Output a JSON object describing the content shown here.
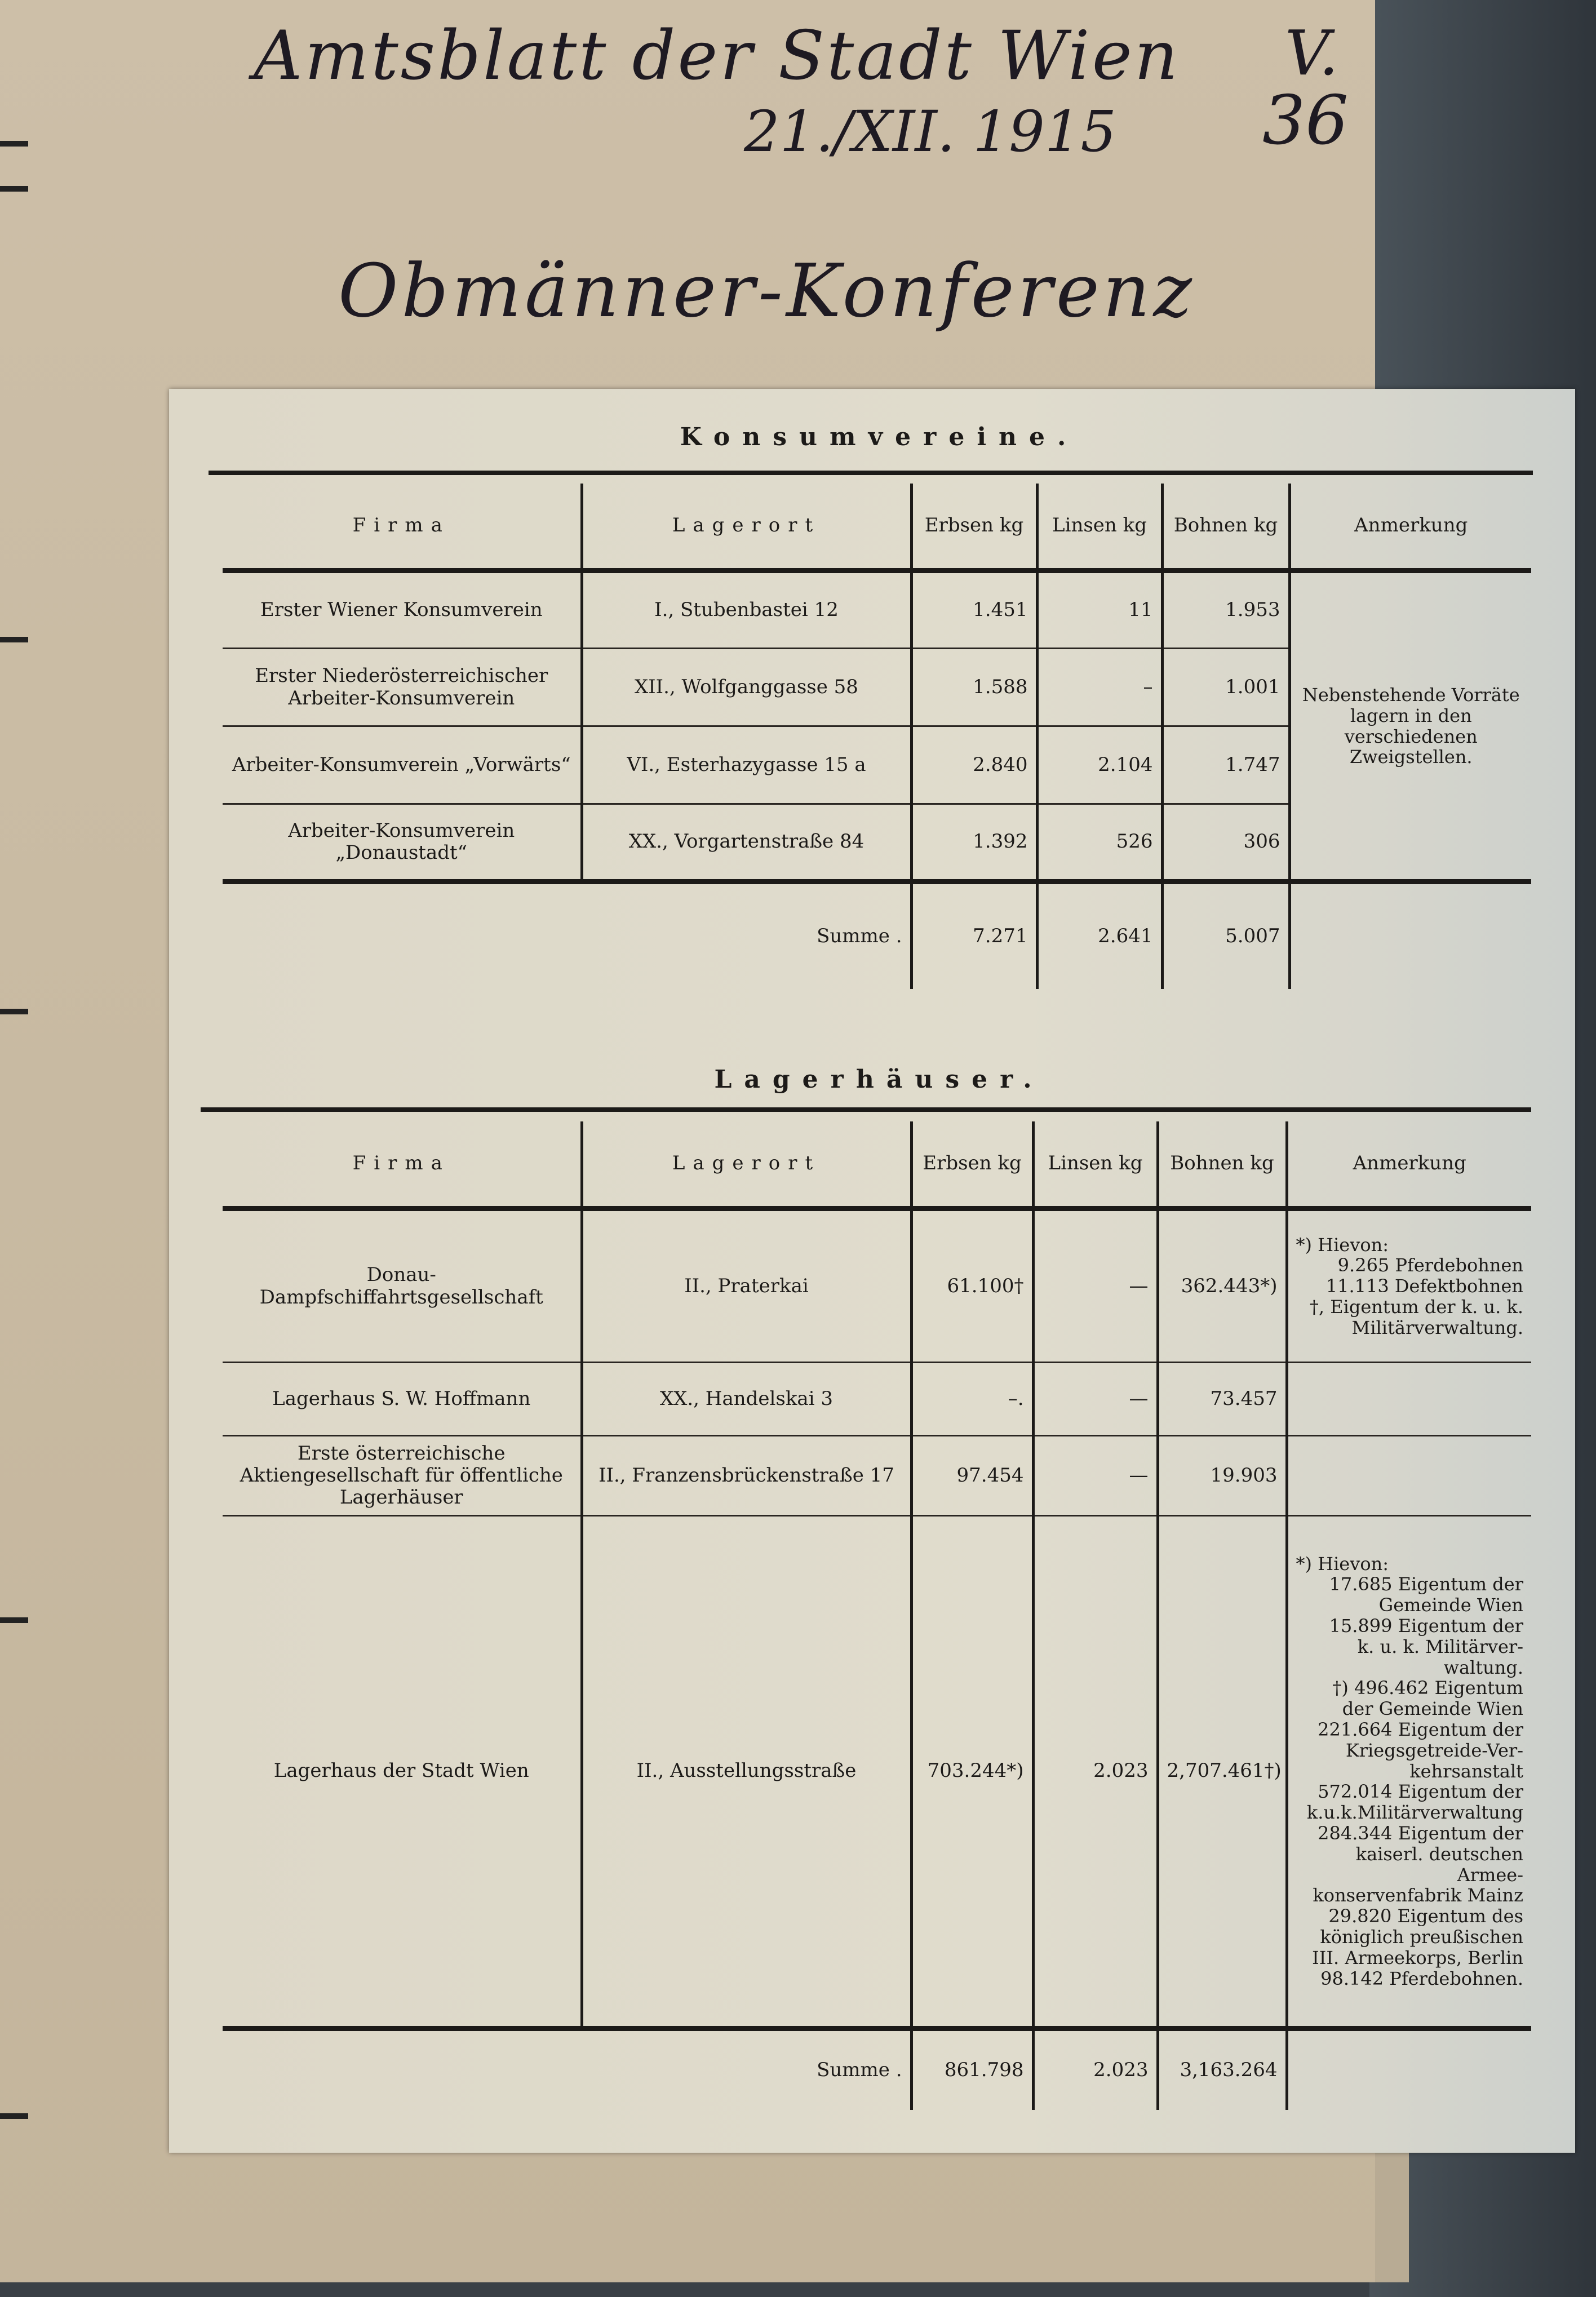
{
  "handwriting": {
    "title": "Amtsblatt der Stadt Wien",
    "date": "21./XII. 1915",
    "volume": "V.",
    "number": "36",
    "subject": "Obmänner-Konferenz"
  },
  "konsumvereine": {
    "title": "Konsumvereine.",
    "headers": {
      "firma": "Firma",
      "lagerort": "Lagerort",
      "erbsen": "Erbsen kg",
      "linsen": "Linsen kg",
      "bohnen": "Bohnen kg",
      "anmerkung": "Anmerkung"
    },
    "rows": [
      {
        "firma": "Erster Wiener Konsumverein",
        "lagerort": "I., Stubenbastei 12",
        "erbsen": "1.451",
        "linsen": "11",
        "bohnen": "1.953"
      },
      {
        "firma": "Erster Niederösterreichischer Arbeiter-Konsumverein",
        "lagerort": "XII., Wolfganggasse 58",
        "erbsen": "1.588",
        "linsen": "–",
        "bohnen": "1.001"
      },
      {
        "firma": "Arbeiter-Konsumverein „Vorwärts“",
        "lagerort": "VI., Esterhazygasse 15 a",
        "erbsen": "2.840",
        "linsen": "2.104",
        "bohnen": "1.747"
      },
      {
        "firma": "Arbeiter-Konsumverein „Donaustadt“",
        "lagerort": "XX., Vorgartenstraße 84",
        "erbsen": "1.392",
        "linsen": "526",
        "bohnen": "306"
      }
    ],
    "note": "Nebenstehende Vorräte lagern in den verschiedenen Zweigstellen.",
    "sum": {
      "label": "Summe .",
      "erbsen": "7.271",
      "linsen": "2.641",
      "bohnen": "5.007"
    }
  },
  "lagerhaeuser": {
    "title": "Lagerhäuser.",
    "headers": {
      "firma": "Firma",
      "lagerort": "Lagerort",
      "erbsen": "Erbsen kg",
      "linsen": "Linsen kg",
      "bohnen": "Bohnen kg",
      "anmerkung": "Anmerkung"
    },
    "rows": [
      {
        "firma": "Donau-Dampfschiffahrtsgesellschaft",
        "lagerort": "II., Praterkai",
        "erbsen": "61.100†",
        "linsen": "—",
        "bohnen": "362.443*)",
        "note": [
          "*) Hievon:",
          "9.265 Pferdebohnen",
          "11.113 Defektbohnen",
          "†, Eigentum der k. u. k.",
          "Militärverwaltung."
        ]
      },
      {
        "firma": "Lagerhaus S. W. Hoffmann",
        "lagerort": "XX., Handelskai 3",
        "erbsen": "–.",
        "linsen": "—",
        "bohnen": "73.457",
        "note": []
      },
      {
        "firma": "Erste österreichische Aktiengesellschaft für öffentliche Lagerhäuser",
        "lagerort": "II., Franzensbrückenstraße 17",
        "erbsen": "97.454",
        "linsen": "—",
        "bohnen": "19.903",
        "note": []
      },
      {
        "firma": "Lagerhaus der Stadt Wien",
        "lagerort": "II., Ausstellungsstraße",
        "erbsen": "703.244*)",
        "linsen": "2.023",
        "bohnen": "2,707.461†)",
        "note": [
          "*) Hievon:",
          "17.685 Eigentum der",
          "Gemeinde Wien",
          "15.899 Eigentum der",
          "k. u. k. Militärver-",
          "waltung.",
          "†) 496.462 Eigentum",
          "der Gemeinde Wien",
          "221.664 Eigentum der",
          "Kriegsgetreide-Ver-",
          "kehrsanstalt",
          "572.014 Eigentum der",
          "k.u.k.Militärverwaltung",
          "284.344 Eigentum der",
          "kaiserl. deutschen Armee-",
          "konservenfabrik Mainz",
          "29.820 Eigentum des",
          "königlich preußischen",
          "III. Armeekorps, Berlin",
          "98.142 Pferdebohnen."
        ]
      }
    ],
    "sum": {
      "label": "Summe .",
      "erbsen": "861.798",
      "linsen": "2.023",
      "bohnen": "3,163.264"
    }
  },
  "colors": {
    "paper": "#ddd8c8",
    "backing": "#c9bba3",
    "ink": "#1c1a18"
  }
}
